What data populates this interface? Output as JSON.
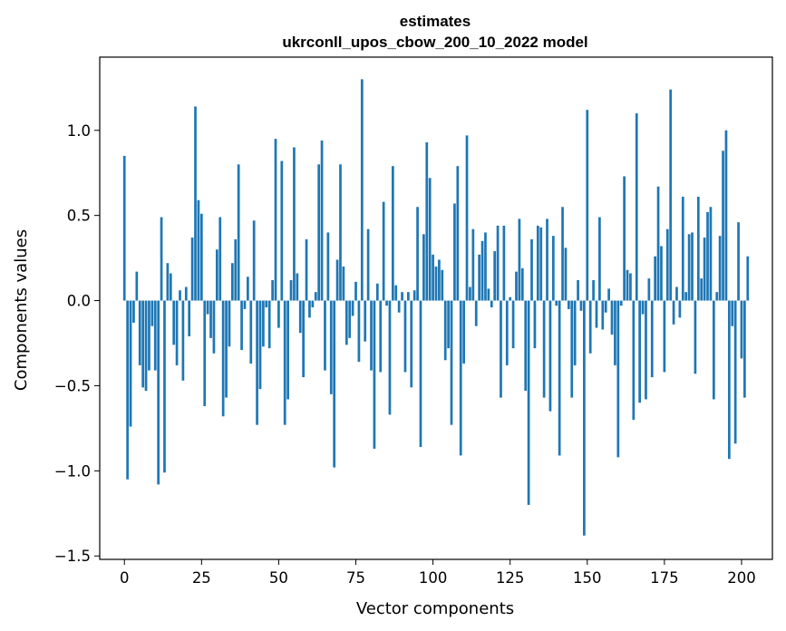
{
  "chart_data": {
    "type": "bar",
    "title": "estimates",
    "subtitle": "ukrconll_upos_cbow_200_10_2022 model",
    "xlabel": "Vector components",
    "ylabel": "Components values",
    "xlim": [
      -8,
      210
    ],
    "ylim": [
      -1.52,
      1.43
    ],
    "xticks": [
      0,
      25,
      50,
      75,
      100,
      125,
      150,
      175,
      200
    ],
    "yticks": [
      -1.5,
      -1.0,
      -0.5,
      0.0,
      0.5,
      1.0
    ],
    "ytick_labels": [
      "−1.5",
      "−1.0",
      "−0.5",
      "0.0",
      "0.5",
      "1.0"
    ],
    "bar_color": "#1f77b4",
    "grid": false,
    "values": [
      0.85,
      -1.05,
      -0.74,
      -0.13,
      0.17,
      -0.38,
      -0.51,
      -0.53,
      -0.41,
      -0.15,
      -0.41,
      -1.08,
      0.49,
      -1.01,
      0.22,
      0.16,
      -0.26,
      -0.38,
      0.06,
      -0.47,
      0.08,
      -0.21,
      0.37,
      1.14,
      0.59,
      0.51,
      -0.62,
      -0.08,
      -0.22,
      -0.31,
      0.3,
      0.49,
      -0.68,
      -0.57,
      -0.27,
      0.22,
      0.36,
      0.8,
      -0.29,
      -0.05,
      0.14,
      -0.37,
      0.47,
      -0.73,
      -0.52,
      -0.27,
      -0.04,
      -0.28,
      0.12,
      0.95,
      -0.16,
      0.82,
      -0.73,
      -0.58,
      0.12,
      0.9,
      0.16,
      -0.19,
      -0.45,
      0.36,
      -0.1,
      -0.04,
      0.05,
      0.8,
      0.94,
      -0.41,
      0.4,
      -0.55,
      -0.98,
      0.24,
      0.8,
      0.2,
      -0.26,
      -0.22,
      -0.09,
      0.11,
      -0.36,
      1.3,
      -0.24,
      0.42,
      -0.41,
      -0.87,
      0.1,
      -0.42,
      0.58,
      -0.03,
      -0.67,
      0.79,
      0.09,
      -0.07,
      0.05,
      -0.42,
      0.05,
      -0.51,
      0.06,
      0.55,
      -0.86,
      0.39,
      0.93,
      0.72,
      0.27,
      0.2,
      0.24,
      0.18,
      -0.35,
      -0.28,
      -0.73,
      0.57,
      0.79,
      -0.91,
      -0.37,
      0.97,
      0.08,
      0.42,
      -0.15,
      0.27,
      0.35,
      0.4,
      0.07,
      -0.04,
      0.29,
      0.44,
      -0.57,
      0.44,
      -0.38,
      0.02,
      -0.28,
      0.17,
      0.48,
      0.19,
      -0.53,
      -1.2,
      0.36,
      -0.28,
      0.44,
      0.43,
      -0.57,
      0.48,
      -0.65,
      0.38,
      -0.03,
      -0.91,
      0.55,
      0.31,
      -0.05,
      -0.57,
      -0.38,
      0.12,
      -0.06,
      -1.38,
      1.12,
      -0.31,
      0.12,
      -0.16,
      0.49,
      -0.17,
      -0.07,
      0.07,
      -0.2,
      -0.38,
      -0.92,
      -0.03,
      0.73,
      0.18,
      0.16,
      -0.7,
      1.1,
      -0.6,
      -0.08,
      -0.58,
      0.13,
      -0.45,
      0.26,
      0.67,
      0.32,
      -0.42,
      0.42,
      1.24,
      -0.14,
      0.08,
      -0.1,
      0.61,
      0.05,
      0.39,
      0.4,
      -0.43,
      0.61,
      0.13,
      0.37,
      0.52,
      0.55,
      -0.58,
      0.05,
      0.38,
      0.88,
      1.0,
      -0.93,
      -0.15,
      -0.84,
      0.46,
      -0.34,
      -0.57,
      0.26
    ]
  }
}
